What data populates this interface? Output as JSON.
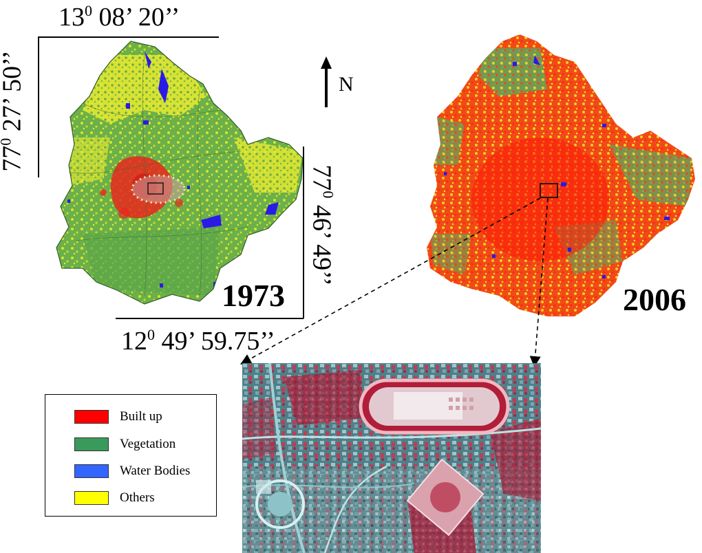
{
  "figure": {
    "maps": [
      {
        "year": "1973"
      },
      {
        "year": "2006"
      }
    ],
    "coordinates": {
      "top": {
        "deg": "13",
        "sup": "0",
        "rest": " 08’ 20’’"
      },
      "left": {
        "deg": "77",
        "sup": "0",
        "rest": " 27’ 50’’"
      },
      "right": {
        "deg": "77",
        "sup": "0",
        "rest": " 46’ 49’’"
      },
      "bottom": {
        "deg": "12",
        "sup": "0",
        "rest": " 49’ 59.75’’"
      }
    },
    "north_label": "N",
    "legend": {
      "items": [
        {
          "label": "Built up",
          "color": "#ff0000"
        },
        {
          "label": "Vegetation",
          "color": "#3a9a5c"
        },
        {
          "label": "Water Bodies",
          "color": "#3366ff"
        },
        {
          "label": "Others",
          "color": "#ffff00"
        }
      ]
    },
    "colors": {
      "built_up": "#ff0000",
      "vegetation": "#5aa84a",
      "water": "#2a1ae6",
      "others": "#e6ea1c"
    }
  }
}
